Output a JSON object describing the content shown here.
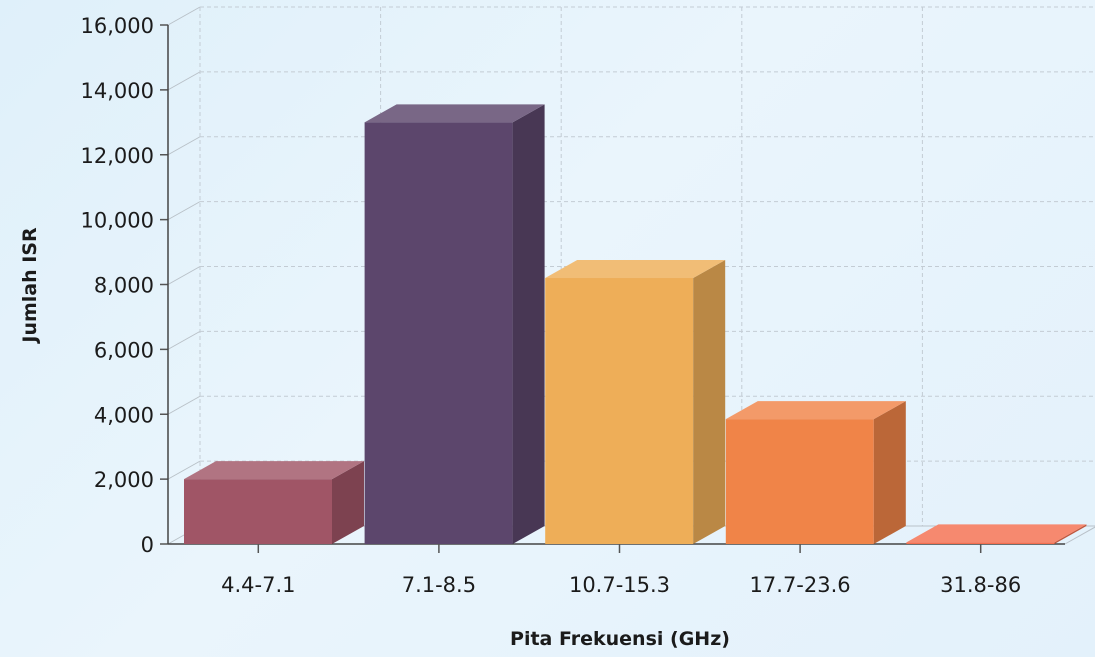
{
  "chart_data": {
    "type": "bar",
    "style": "3d",
    "title": "",
    "xlabel": "Pita Frekuensi (GHz)",
    "ylabel": "Jumlah ISR",
    "categories": [
      "4.4-7.1",
      "7.1-8.5",
      "10.7-15.3",
      "17.7-23.6",
      "31.8-86"
    ],
    "values": [
      2000,
      13000,
      8200,
      3850,
      50
    ],
    "ylim": [
      0,
      16000
    ],
    "yticks": [
      0,
      2000,
      4000,
      6000,
      8000,
      10000,
      12000,
      14000,
      16000
    ],
    "ytick_labels": [
      "0",
      "2,000",
      "4,000",
      "6,000",
      "8,000",
      "10,000",
      "12,000",
      "14,000",
      "16,000"
    ],
    "grid": true,
    "legend": "none",
    "colors": [
      "#a05566",
      "#5c466c",
      "#eeae58",
      "#f08448",
      "#f46f4f"
    ]
  }
}
